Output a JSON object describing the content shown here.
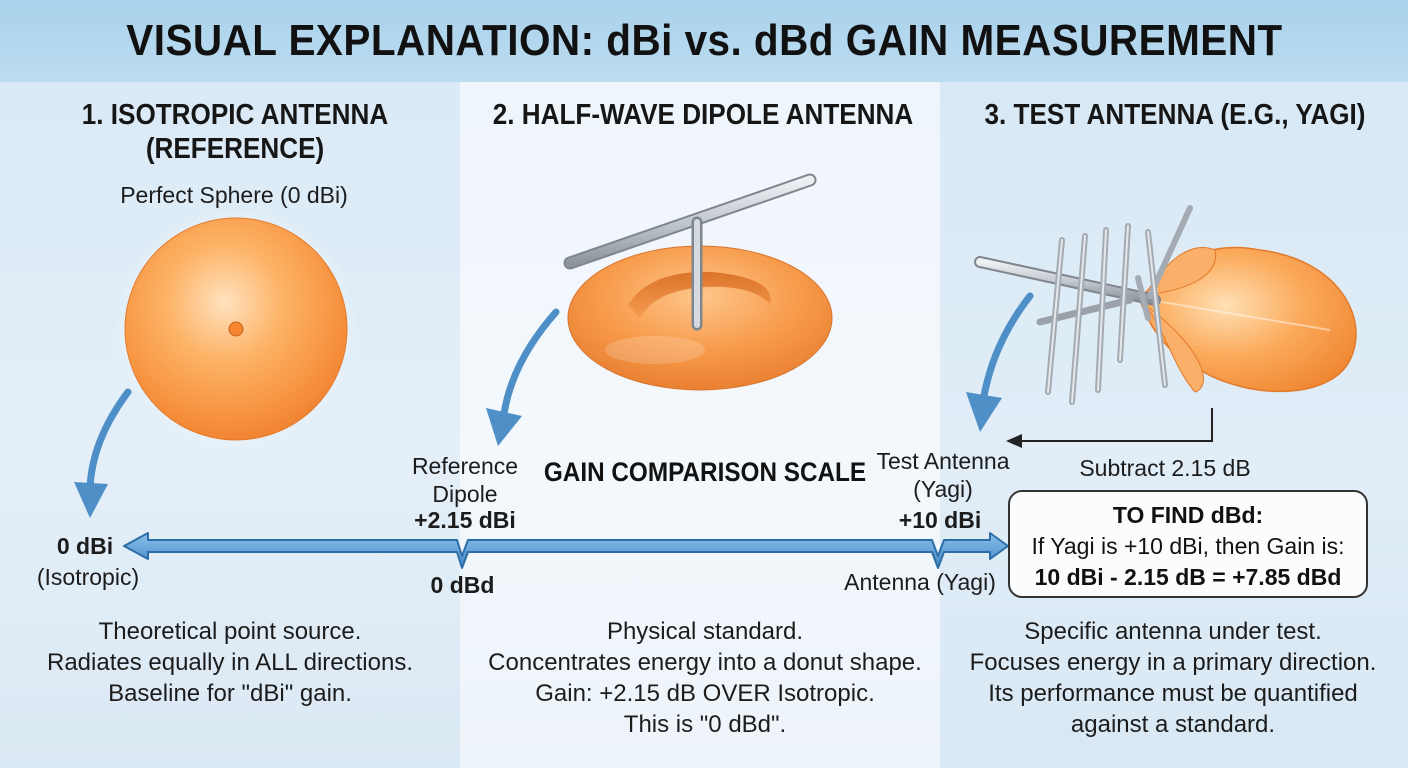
{
  "title": "VISUAL EXPLANATION: dBi vs. dBd GAIN MEASUREMENT",
  "sections": [
    {
      "title_line1": "1. ISOTROPIC ANTENNA",
      "title_line2": "(REFERENCE)",
      "caption": "Perfect Sphere (0 dBi)",
      "description": [
        "Theoretical point source.",
        "Radiates equally in ALL directions.",
        "Baseline for \"dBi\" gain."
      ]
    },
    {
      "title_line1": "2. HALF-WAVE DIPOLE ANTENNA",
      "description": [
        "Physical standard.",
        "Concentrates energy into a donut shape.",
        "Gain: +2.15 dB OVER Isotropic.",
        "This is \"0 dBd\"."
      ]
    },
    {
      "title_line1": "3. TEST ANTENNA (E.G., YAGI)",
      "subtract_label": "Subtract 2.15 dB",
      "description": [
        "Specific antenna under test.",
        "Focuses energy in a primary direction.",
        "Its performance must be quantified",
        "against a standard."
      ]
    }
  ],
  "scale": {
    "title": "GAIN COMPARISON SCALE",
    "left": {
      "value": "0 dBi",
      "label": "(Isotropic)"
    },
    "reference": {
      "label_line1": "Reference",
      "label_line2": "Dipole",
      "value": "+2.15 dBi",
      "below": "0 dBd"
    },
    "test": {
      "label_line1": "Test Antenna",
      "label_line2": "(Yagi)",
      "value": "+10 dBi",
      "below": "Antenna (Yagi)"
    }
  },
  "callout": {
    "heading": "TO FIND dBd:",
    "line1": "If Yagi is +10 dBi, then Gain is:",
    "formula": "10 dBi - 2.15 dB = +7.85 dBd"
  },
  "colors": {
    "header": "#a9d2ec",
    "radiation_orange": "#f7a04f",
    "arrow_blue": "#4f8fc7",
    "metal": "#c9ced4"
  }
}
